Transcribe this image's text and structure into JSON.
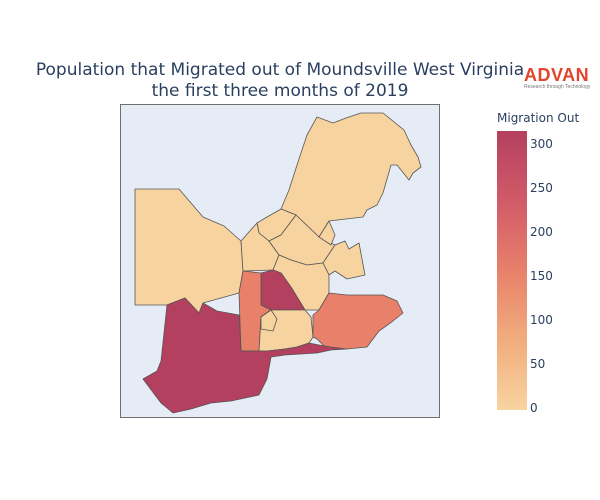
{
  "title": {
    "line1": "Population that Migrated out of Moundsville West Virginia",
    "line2": "the first three months of 2019"
  },
  "logo": {
    "name": "ADVAN",
    "tagline": "Research through Technology",
    "color": "#e2452b"
  },
  "legend": {
    "title": "Migration Out",
    "ticks": [
      "300",
      "250",
      "200",
      "150",
      "100",
      "50",
      "0"
    ],
    "range": [
      0,
      315
    ],
    "colors": [
      "#f7d3a0",
      "#f1ad7e",
      "#e8806a",
      "#d15a68",
      "#b4405f"
    ]
  },
  "map": {
    "background": "#e5ecf6",
    "region_count": 13
  }
}
